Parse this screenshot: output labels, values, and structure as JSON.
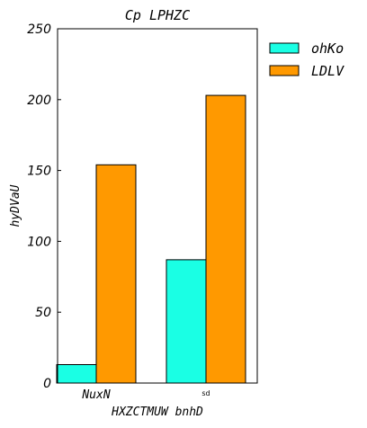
{
  "chart_data": {
    "type": "bar",
    "title": "Cp  LPHZC",
    "xlabel": "HXZCTMUW  bnhD",
    "ylabel": "hyDVaU",
    "categories": [
      "NuxN",
      "sd"
    ],
    "series": [
      {
        "name": "ohKo",
        "color": "#1affe4",
        "values": [
          13,
          87
        ]
      },
      {
        "name": "LDLV",
        "color": "#ff9900",
        "values": [
          154,
          203
        ]
      }
    ],
    "ylim": [
      0,
      250
    ],
    "yticks": [
      0,
      50,
      100,
      150,
      200,
      250
    ],
    "grid": false,
    "legend_position": "upper-right-outside"
  }
}
